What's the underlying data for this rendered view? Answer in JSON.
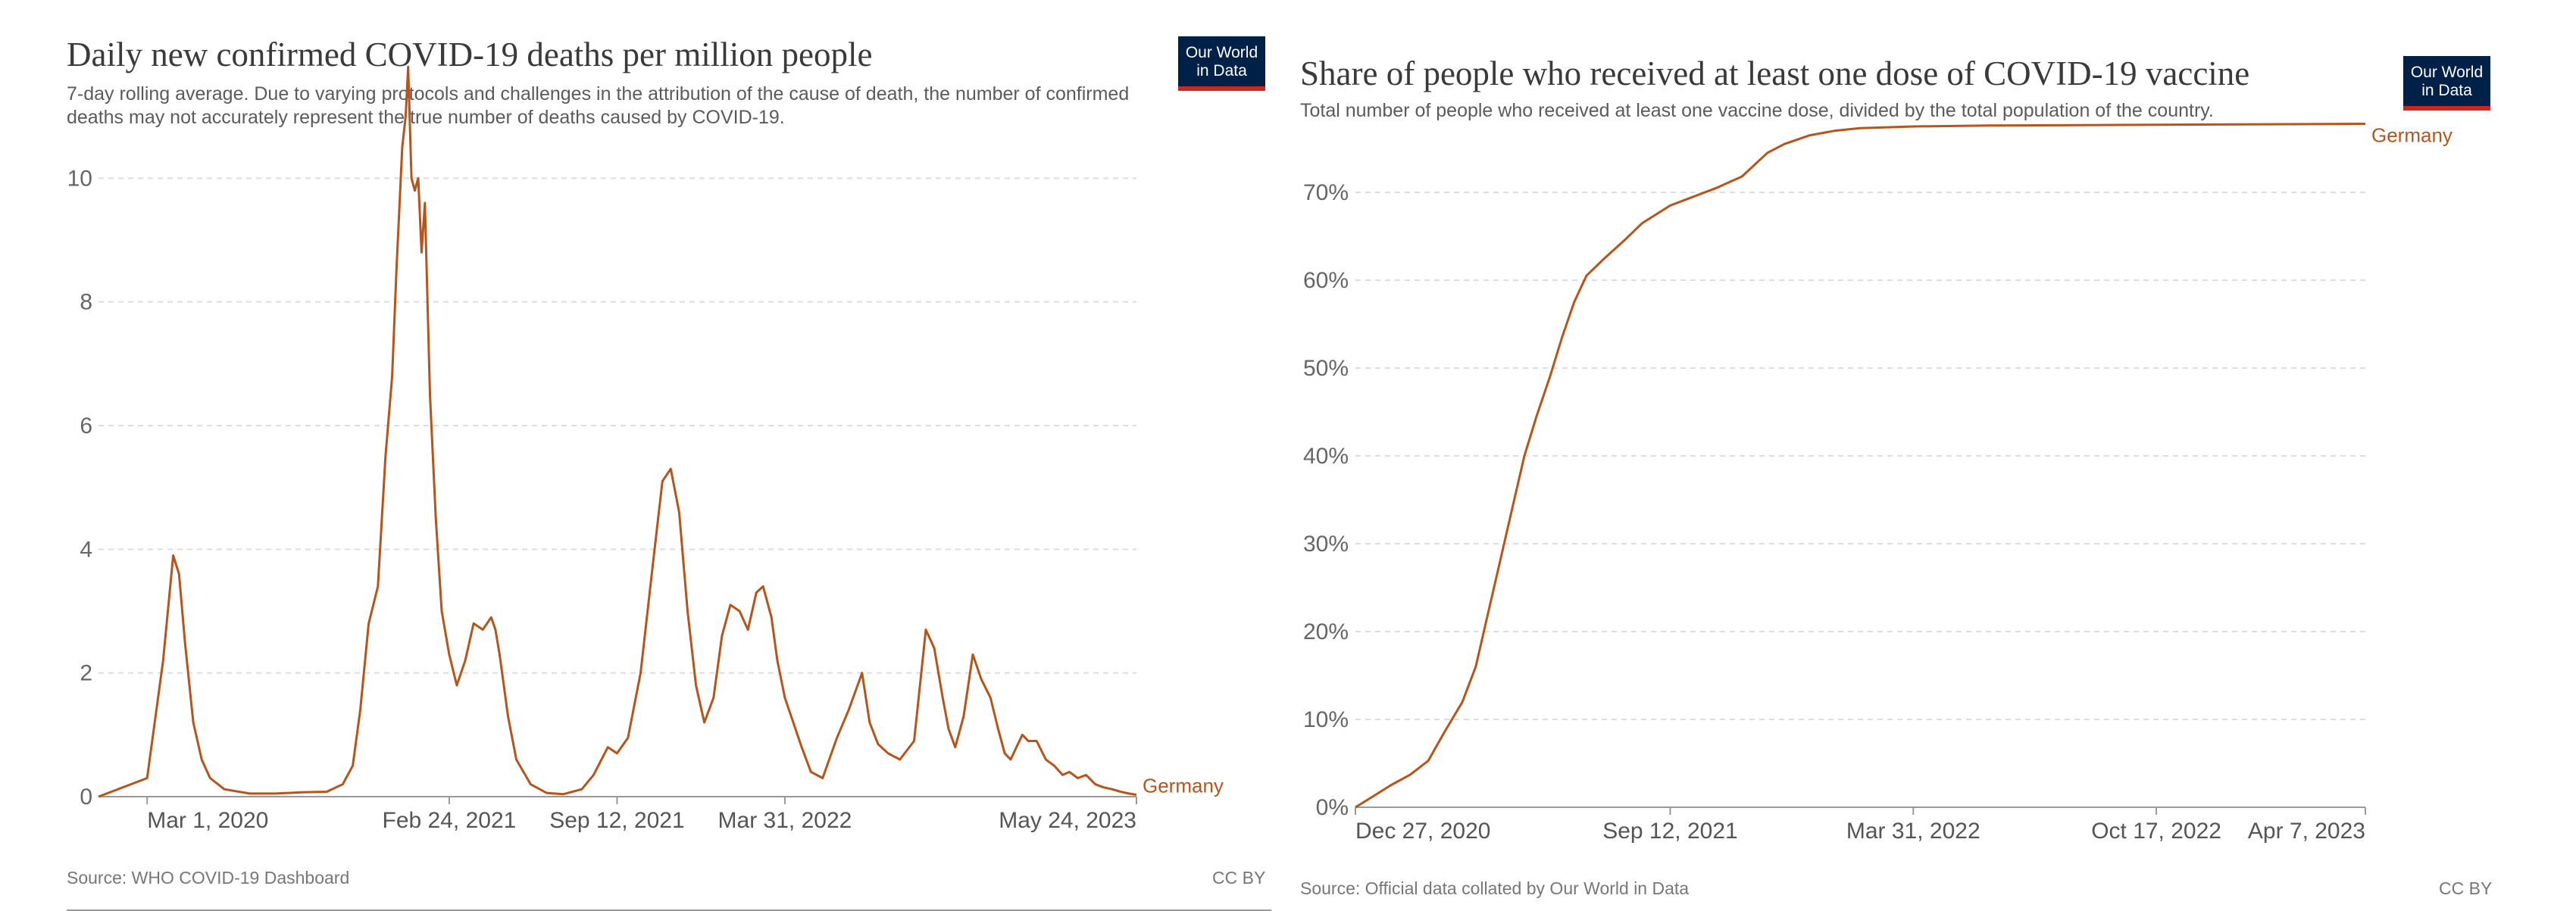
{
  "chart_data": [
    {
      "type": "line",
      "title": "Daily new confirmed COVID-19 deaths per million people",
      "subtitle": "7-day rolling average. Due to varying protocols and challenges in the attribution of the cause of death, the number of confirmed deaths may not accurately represent the true number of deaths caused by COVID-19.",
      "logo_text": [
        "Our World",
        "in Data"
      ],
      "source": "Source: WHO COVID-19 Dashboard",
      "license": "CC BY",
      "xlabel": "",
      "ylabel": "",
      "ylim": [
        0,
        12
      ],
      "yticks": [
        0,
        2,
        4,
        6,
        8,
        10
      ],
      "ytick_labels": [
        "0",
        "2",
        "4",
        "6",
        "8",
        "10"
      ],
      "xlim": [
        "2020-01-03",
        "2023-05-24"
      ],
      "xticks": [
        "2020-03-01",
        "2021-02-24",
        "2021-09-12",
        "2022-03-31",
        "2023-05-24"
      ],
      "xtick_labels": [
        "Mar 1, 2020",
        "Feb 24, 2021",
        "Sep 12, 2021",
        "Mar 31, 2022",
        "May 24, 2023"
      ],
      "grid": "horizontal-dashed",
      "color": "#b5541b",
      "series": [
        {
          "name": "Germany",
          "x": [
            "2020-01-03",
            "2020-03-01",
            "2020-03-20",
            "2020-04-01",
            "2020-04-08",
            "2020-04-15",
            "2020-04-25",
            "2020-05-05",
            "2020-05-15",
            "2020-06-01",
            "2020-07-01",
            "2020-08-01",
            "2020-09-01",
            "2020-10-01",
            "2020-10-20",
            "2020-11-01",
            "2020-11-10",
            "2020-11-20",
            "2020-12-01",
            "2020-12-10",
            "2020-12-18",
            "2020-12-23",
            "2020-12-30",
            "2021-01-03",
            "2021-01-06",
            "2021-01-10",
            "2021-01-14",
            "2021-01-18",
            "2021-01-22",
            "2021-01-26",
            "2021-02-01",
            "2021-02-08",
            "2021-02-15",
            "2021-02-24",
            "2021-03-05",
            "2021-03-15",
            "2021-03-25",
            "2021-04-05",
            "2021-04-15",
            "2021-04-20",
            "2021-04-25",
            "2021-05-05",
            "2021-05-15",
            "2021-06-01",
            "2021-06-20",
            "2021-07-10",
            "2021-08-01",
            "2021-08-15",
            "2021-09-01",
            "2021-09-12",
            "2021-09-25",
            "2021-10-10",
            "2021-10-25",
            "2021-11-05",
            "2021-11-15",
            "2021-11-25",
            "2021-12-05",
            "2021-12-15",
            "2021-12-25",
            "2022-01-05",
            "2022-01-15",
            "2022-01-25",
            "2022-02-05",
            "2022-02-15",
            "2022-02-25",
            "2022-03-05",
            "2022-03-15",
            "2022-03-22",
            "2022-03-31",
            "2022-04-10",
            "2022-04-20",
            "2022-05-01",
            "2022-05-15",
            "2022-06-01",
            "2022-06-15",
            "2022-07-01",
            "2022-07-10",
            "2022-07-20",
            "2022-08-01",
            "2022-08-15",
            "2022-09-01",
            "2022-09-15",
            "2022-09-25",
            "2022-10-05",
            "2022-10-12",
            "2022-10-20",
            "2022-10-30",
            "2022-11-10",
            "2022-11-20",
            "2022-12-01",
            "2022-12-10",
            "2022-12-18",
            "2022-12-25",
            "2023-01-01",
            "2023-01-08",
            "2023-01-15",
            "2023-01-25",
            "2023-02-05",
            "2023-02-15",
            "2023-02-25",
            "2023-03-05",
            "2023-03-15",
            "2023-03-25",
            "2023-04-05",
            "2023-04-15",
            "2023-04-25",
            "2023-05-05",
            "2023-05-15",
            "2023-05-24"
          ],
          "values": [
            0,
            0.3,
            2.2,
            3.9,
            3.6,
            2.5,
            1.2,
            0.6,
            0.3,
            0.12,
            0.05,
            0.05,
            0.07,
            0.08,
            0.2,
            0.5,
            1.4,
            2.8,
            3.4,
            5.5,
            6.8,
            8.5,
            10.5,
            11.0,
            11.8,
            10.0,
            9.8,
            10.0,
            8.8,
            9.6,
            6.5,
            4.5,
            3.0,
            2.3,
            1.8,
            2.2,
            2.8,
            2.7,
            2.9,
            2.7,
            2.3,
            1.3,
            0.6,
            0.2,
            0.06,
            0.04,
            0.12,
            0.35,
            0.8,
            0.7,
            0.95,
            2.0,
            3.8,
            5.1,
            5.3,
            4.6,
            3.0,
            1.8,
            1.2,
            1.6,
            2.6,
            3.1,
            3.0,
            2.7,
            3.3,
            3.4,
            2.9,
            2.2,
            1.6,
            1.2,
            0.8,
            0.4,
            0.3,
            0.95,
            1.4,
            2.0,
            1.2,
            0.85,
            0.7,
            0.6,
            0.9,
            2.7,
            2.4,
            1.6,
            1.1,
            0.8,
            1.3,
            2.3,
            1.9,
            1.6,
            1.1,
            0.7,
            0.6,
            0.8,
            1.0,
            0.9,
            0.9,
            0.6,
            0.5,
            0.35,
            0.4,
            0.3,
            0.35,
            0.2,
            0.15,
            0.12,
            0.08,
            0.05,
            0.03
          ]
        }
      ]
    },
    {
      "type": "line",
      "title": "Share of people who received at least one dose of COVID-19 vaccine",
      "subtitle": "Total number of people who received at least one vaccine dose, divided by the total population of the country.",
      "logo_text": [
        "Our World",
        "in Data"
      ],
      "source": "Source: Official data collated by Our World in Data",
      "license": "CC BY",
      "xlabel": "",
      "ylabel": "",
      "ylim": [
        0,
        80
      ],
      "yticks": [
        0,
        10,
        20,
        30,
        40,
        50,
        60,
        70
      ],
      "ytick_labels": [
        "0%",
        "10%",
        "20%",
        "30%",
        "40%",
        "50%",
        "60%",
        "70%"
      ],
      "xlim": [
        "2020-12-27",
        "2023-04-07"
      ],
      "xticks": [
        "2020-12-27",
        "2021-09-12",
        "2022-03-31",
        "2022-10-17",
        "2023-04-07"
      ],
      "xtick_labels": [
        "Dec 27, 2020",
        "Sep 12, 2021",
        "Mar 31, 2022",
        "Oct 17, 2022",
        "Apr 7, 2023"
      ],
      "grid": "horizontal-dashed",
      "color": "#b5541b",
      "series": [
        {
          "name": "Germany",
          "x": [
            "2020-12-27",
            "2021-01-10",
            "2021-01-25",
            "2021-02-10",
            "2021-02-25",
            "2021-03-10",
            "2021-03-25",
            "2021-04-05",
            "2021-04-15",
            "2021-04-25",
            "2021-05-05",
            "2021-05-15",
            "2021-05-25",
            "2021-06-05",
            "2021-06-15",
            "2021-06-25",
            "2021-07-05",
            "2021-07-20",
            "2021-08-05",
            "2021-08-20",
            "2021-09-12",
            "2021-10-01",
            "2021-10-20",
            "2021-11-10",
            "2021-12-01",
            "2021-12-15",
            "2022-01-05",
            "2022-01-25",
            "2022-02-15",
            "2022-03-31",
            "2022-06-01",
            "2022-10-17",
            "2023-04-07"
          ],
          "values": [
            0,
            1.2,
            2.5,
            3.7,
            5.3,
            8.5,
            12.0,
            16.0,
            22.0,
            28.0,
            34.0,
            40.0,
            44.5,
            49.0,
            53.5,
            57.5,
            60.5,
            62.5,
            64.5,
            66.5,
            68.5,
            69.5,
            70.5,
            71.8,
            74.5,
            75.5,
            76.5,
            77.0,
            77.3,
            77.5,
            77.6,
            77.7,
            77.8
          ]
        }
      ]
    }
  ]
}
